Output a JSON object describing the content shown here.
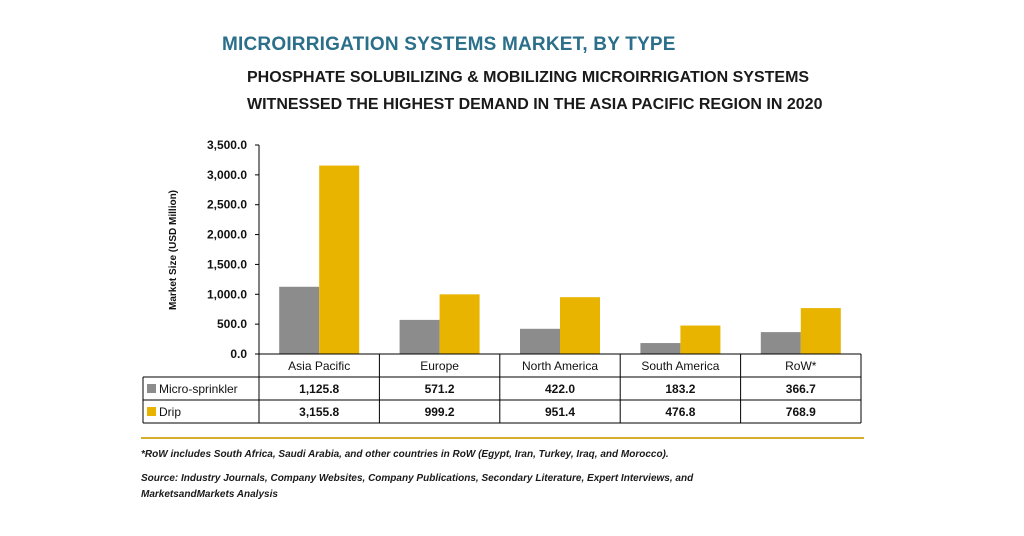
{
  "header": {
    "title": "MICROIRRIGATION SYSTEMS MARKET, BY TYPE",
    "subtitle_line1": "PHOSPHATE SOLUBILIZING & MOBILIZING MICROIRRIGATION SYSTEMS",
    "subtitle_line2": "WITNESSED THE HIGHEST DEMAND IN THE ASIA PACIFIC REGION IN 2020"
  },
  "chart_data": {
    "type": "bar",
    "ylabel": "Market Size (USD Million)",
    "ylim": [
      0,
      3500
    ],
    "yticks": [
      0,
      500,
      1000,
      1500,
      2000,
      2500,
      3000,
      3500
    ],
    "ytick_labels": [
      "0.0",
      "500.0",
      "1,000.0",
      "1,500.0",
      "2,000.0",
      "2,500.0",
      "3,000.0",
      "3,500.0"
    ],
    "categories": [
      "Asia Pacific",
      "Europe",
      "North America",
      "South America",
      "RoW*"
    ],
    "series": [
      {
        "name": "Micro-sprinkler",
        "color": "#8c8c8c",
        "values": [
          1125.8,
          571.2,
          422.0,
          183.2,
          366.7
        ],
        "labels": [
          "1,125.8",
          "571.2",
          "422.0",
          "183.2",
          "366.7"
        ]
      },
      {
        "name": "Drip",
        "color": "#e8b400",
        "values": [
          3155.8,
          999.2,
          951.4,
          476.8,
          768.9
        ],
        "labels": [
          "3,155.8",
          "999.2",
          "951.4",
          "476.8",
          "768.9"
        ]
      }
    ],
    "grid": false,
    "legend": "data-table"
  },
  "footer": {
    "note": "*RoW includes South Africa, Saudi Arabia, and other countries in RoW (Egypt, Iran, Turkey, Iraq, and Morocco).",
    "source_line1": "Source: Industry Journals, Company Websites, Company Publications, Secondary Literature, Expert Interviews, and",
    "source_line2": "MarketsandMarkets Analysis"
  },
  "colors": {
    "title": "#2b6f8a",
    "divider": "#d7ad2e"
  }
}
